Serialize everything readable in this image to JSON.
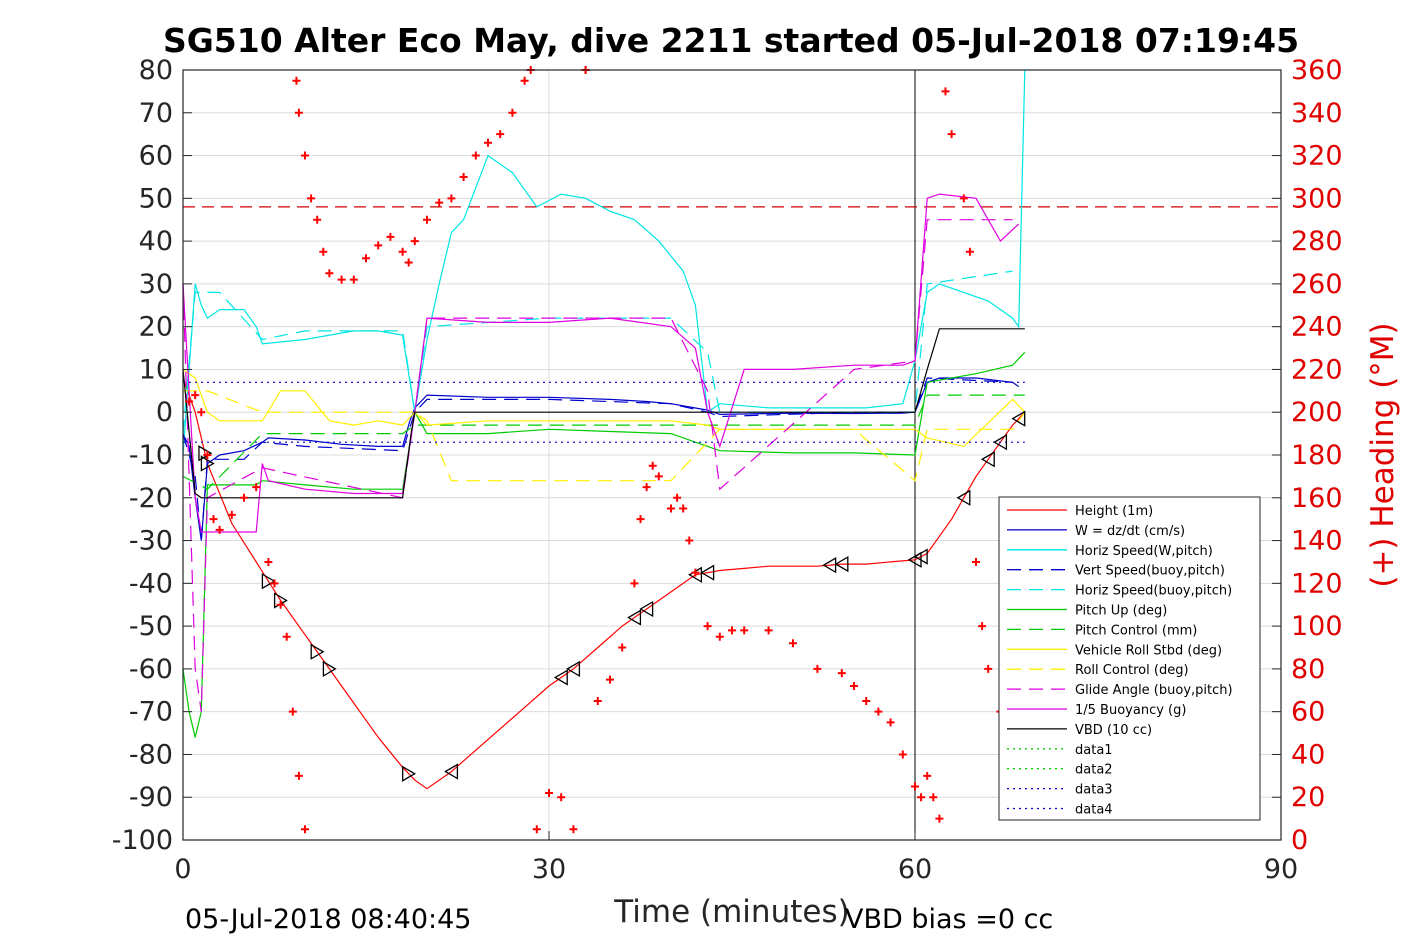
{
  "chart_data": {
    "type": "line",
    "title": "SG510 Alter Eco May, dive 2211 started 05-Jul-2018 07:19:45",
    "xlabel": "Time (minutes)",
    "ylabel_right": "(+) Heading (°M)",
    "footer_left": "05-Jul-2018 08:40:45",
    "footer_right": "VBD bias =0 cc",
    "xlim": [
      0,
      90
    ],
    "ylim": [
      -100,
      80
    ],
    "ylim_right": [
      0,
      360
    ],
    "x_ticks": [
      "0",
      "30",
      "60",
      "90"
    ],
    "y_ticks": [
      "80",
      "70",
      "60",
      "50",
      "40",
      "30",
      "20",
      "10",
      "0",
      "-10",
      "-20",
      "-30",
      "-40",
      "-50",
      "-60",
      "-70",
      "-80",
      "-90",
      "-100"
    ],
    "y_ticks_right": [
      "360",
      "340",
      "320",
      "300",
      "280",
      "260",
      "240",
      "220",
      "200",
      "180",
      "160",
      "140",
      "120",
      "100",
      "80",
      "60",
      "40",
      "20",
      "0"
    ],
    "grid": true,
    "legend_position": "bottom-right",
    "colors": {
      "height": "#ff0000",
      "w": "#0000cc",
      "horiz": "#00e5e5",
      "pitch": "#00cc00",
      "roll": "#ffee00",
      "glide": "#e000e0",
      "vbd": "#000000",
      "heading": "#ff0000"
    },
    "series": [
      {
        "name": "Height (1m)",
        "style": "solid",
        "color": "#ff0000",
        "x": [
          0,
          1,
          2,
          4,
          6,
          8,
          10,
          12,
          14,
          16,
          18,
          19,
          20,
          22,
          24,
          26,
          28,
          30,
          32,
          34,
          36,
          38,
          40,
          42,
          44,
          46,
          48,
          50,
          52,
          54,
          56,
          58,
          60,
          61,
          62,
          63,
          64,
          65,
          66,
          67,
          68,
          69
        ],
        "y": [
          8,
          0,
          -12,
          -26,
          -35,
          -44,
          -52,
          -60,
          -68,
          -76,
          -83,
          -86,
          -88,
          -84,
          -79,
          -74,
          -69,
          -64,
          -60,
          -55,
          -50,
          -46,
          -42,
          -38,
          -37,
          -36.5,
          -36,
          -36,
          -36,
          -35.5,
          -35.5,
          -35,
          -34.5,
          -33,
          -29,
          -25,
          -20,
          -15,
          -11,
          -7,
          -3,
          0
        ]
      },
      {
        "name": "W = dz/dt (cm/s)",
        "style": "solid",
        "color": "#0000cc",
        "x": [
          0,
          0.5,
          1,
          1.5,
          2,
          3,
          5,
          6.5,
          7,
          10,
          13,
          16,
          18,
          18.6,
          19,
          20,
          25,
          30,
          35,
          38,
          40,
          43,
          44,
          50,
          55,
          59,
          60,
          61,
          62,
          65,
          68,
          68.5
        ],
        "y": [
          -5,
          -8,
          -20,
          -30,
          -12,
          -10,
          -9,
          -7,
          -6,
          -6.5,
          -7.5,
          -8,
          -8,
          -2,
          1,
          4,
          3.5,
          3.5,
          3,
          2.5,
          2,
          0.5,
          -0.5,
          -0.2,
          -0.3,
          -0.2,
          0,
          7,
          8,
          8,
          7,
          6
        ]
      },
      {
        "name": "Horiz Speed(W,pitch)",
        "style": "solid",
        "color": "#00e5e5",
        "x": [
          0,
          1,
          1.5,
          2,
          3,
          5,
          6,
          6.5,
          10,
          14,
          16,
          18,
          19,
          20,
          21,
          22,
          23,
          25,
          27,
          29,
          31,
          33,
          35,
          37,
          39,
          41,
          42,
          43,
          44,
          48,
          52,
          56,
          59,
          60,
          61,
          62,
          64,
          66,
          68,
          68.5,
          69
        ],
        "y": [
          -10,
          30,
          25,
          22,
          24,
          24,
          20,
          16,
          17,
          19,
          19,
          18,
          0,
          17,
          30,
          42,
          45,
          60,
          56,
          48,
          51,
          50,
          47,
          45,
          40,
          33,
          25,
          0,
          2,
          1,
          1,
          1,
          2,
          12,
          28,
          30,
          28,
          26,
          22,
          20,
          80
        ]
      },
      {
        "name": "Vert Speed(buoy,pitch)",
        "style": "dashed",
        "color": "#0000cc",
        "x": [
          0,
          1,
          1.5,
          2,
          5,
          6.5,
          10,
          18,
          19,
          20,
          30,
          40,
          43,
          44,
          55,
          60,
          61,
          68
        ],
        "y": [
          -5,
          -15,
          -30,
          -11,
          -11,
          -7,
          -8,
          -9,
          0,
          3,
          3,
          2,
          0,
          -1,
          0,
          0,
          8,
          7
        ]
      },
      {
        "name": "Horiz Speed(buoy,pitch)",
        "style": "dashed",
        "color": "#00e5e5",
        "x": [
          0,
          1,
          2,
          3,
          6.5,
          10,
          18,
          19,
          20,
          30,
          40,
          43,
          44,
          55,
          60,
          61,
          68
        ],
        "y": [
          -5,
          28,
          28,
          28,
          17,
          19,
          19,
          0,
          20,
          22,
          22,
          14,
          0,
          0,
          0,
          30,
          33
        ]
      },
      {
        "name": "Pitch Up (deg)",
        "style": "solid",
        "color": "#00cc00",
        "x": [
          0,
          0.5,
          1,
          1.5,
          2,
          4,
          6,
          6.5,
          10,
          14,
          18,
          19,
          20,
          25,
          30,
          35,
          40,
          43,
          44,
          50,
          55,
          60,
          61,
          65,
          68,
          69
        ],
        "y": [
          -60,
          -70,
          -76,
          -70,
          -17,
          -17,
          -17,
          -16,
          -17,
          -18,
          -18,
          0,
          -5,
          -5,
          -4,
          -4.5,
          -5,
          -8,
          -9,
          -9.5,
          -9.5,
          -10,
          7,
          9,
          11,
          14
        ]
      },
      {
        "name": "Pitch Control (mm)",
        "style": "dashed",
        "color": "#00cc00",
        "x": [
          0,
          2,
          6.5,
          18,
          19,
          43,
          44,
          60,
          61,
          69
        ],
        "y": [
          -15,
          -18,
          -5,
          -5,
          -3,
          -3,
          -3,
          -3,
          4,
          4
        ]
      },
      {
        "name": "Vehicle Roll Stbd (deg)",
        "style": "solid",
        "color": "#ffee00",
        "x": [
          0,
          1,
          2,
          3,
          6,
          6.5,
          8,
          10,
          12,
          14,
          16,
          18,
          19,
          20,
          25,
          30,
          35,
          40,
          43,
          44,
          50,
          55,
          60,
          61,
          64,
          68,
          69
        ],
        "y": [
          10,
          8,
          0,
          -2,
          -2,
          -2,
          5,
          5,
          -2,
          -3,
          -2,
          -3,
          0,
          -3,
          -2,
          -2,
          -2,
          -2,
          -3,
          -4,
          -4,
          -4,
          -4,
          -6,
          -8,
          3,
          0
        ]
      },
      {
        "name": "Roll Control (deg)",
        "style": "dashed",
        "color": "#ffee00",
        "x": [
          0,
          2,
          6.5,
          7,
          18,
          19,
          20,
          22,
          30,
          35,
          40,
          44,
          55,
          60,
          61,
          68,
          69
        ],
        "y": [
          5,
          5,
          0,
          0,
          0,
          0,
          -2,
          -16,
          -16,
          -16,
          -16,
          -4,
          -4,
          -16,
          -4,
          -4,
          0
        ]
      },
      {
        "name": "Glide Angle (buoy,pitch)",
        "style": "dashed",
        "color": "#e000e0",
        "x": [
          0,
          1,
          1.5,
          2,
          6.5,
          18,
          19,
          20,
          30,
          40,
          43,
          44,
          55,
          60,
          61,
          68
        ],
        "y": [
          30,
          -60,
          -70,
          -20,
          -13,
          -20,
          0,
          22,
          22,
          22,
          5,
          -18,
          10,
          12,
          45,
          45
        ]
      },
      {
        "name": "1/5 Buoyancy (g)",
        "style": "solid",
        "color": "#e000e0",
        "x": [
          0,
          1,
          1.5,
          2,
          3,
          6,
          6.5,
          7,
          10,
          14,
          18,
          19,
          20,
          25,
          30,
          35,
          40,
          42,
          43,
          44,
          46,
          50,
          55,
          59,
          60,
          61,
          62,
          65,
          66,
          67,
          68.5
        ],
        "y": [
          30,
          -20,
          -28,
          -28,
          -28,
          -28,
          -12,
          -16,
          -18,
          -19,
          -19,
          0,
          22,
          21,
          21,
          22,
          20,
          15,
          0,
          -8,
          10,
          10,
          11,
          11,
          12,
          50,
          51,
          50,
          45,
          40,
          44
        ]
      },
      {
        "name": "VBD (10 cc)",
        "style": "solid",
        "color": "#000000",
        "x": [
          0,
          1,
          1.5,
          2,
          18,
          18.7,
          19,
          20,
          60,
          61,
          62,
          69
        ],
        "y": [
          10,
          -19,
          -20,
          -20,
          -20,
          -5,
          0,
          0,
          0,
          10,
          19.5,
          19.5
        ]
      },
      {
        "name": "data1",
        "style": "dotted",
        "color": "#00cc00",
        "x": [],
        "y": []
      },
      {
        "name": "data2",
        "style": "dotted",
        "color": "#00cc00",
        "x": [],
        "y": []
      },
      {
        "name": "data3",
        "style": "dotted",
        "color": "#0000cc",
        "x": [
          0,
          69
        ],
        "y": [
          7,
          7
        ]
      },
      {
        "name": "data4",
        "style": "dotted",
        "color": "#0000cc",
        "x": [
          0,
          69
        ],
        "y": [
          -7,
          -7
        ]
      }
    ],
    "heading_series": {
      "axis": "right",
      "marker": "+",
      "color": "#ff0000",
      "x": [
        0.5,
        1,
        1.5,
        2,
        2.5,
        3,
        4,
        5,
        6,
        7,
        7.5,
        8,
        8.5,
        9,
        9.5,
        10,
        9.3,
        9.5,
        10,
        10.5,
        11,
        11.5,
        12,
        13,
        14,
        15,
        16,
        17,
        18,
        18.5,
        19,
        20,
        21,
        22,
        23,
        24,
        25,
        26,
        27,
        28,
        28.5,
        29,
        30,
        31,
        32,
        33,
        33,
        34,
        35,
        36,
        37,
        37.5,
        38,
        38.5,
        39,
        40,
        40.5,
        41,
        41.5,
        42,
        43,
        44,
        45,
        46,
        48,
        50,
        52,
        54,
        55,
        56,
        57,
        58,
        59,
        60,
        60.5,
        61,
        61.5,
        62,
        62.5,
        63,
        64,
        64.5,
        65,
        65.5,
        66,
        67,
        68
      ],
      "y": [
        205,
        208,
        200,
        180,
        150,
        145,
        152,
        160,
        165,
        130,
        120,
        110,
        95,
        60,
        30,
        5,
        355,
        340,
        320,
        300,
        290,
        275,
        265,
        262,
        262,
        272,
        278,
        282,
        275,
        270,
        280,
        290,
        298,
        300,
        310,
        320,
        326,
        330,
        340,
        355,
        360,
        5,
        22,
        20,
        5,
        360,
        360,
        65,
        75,
        90,
        120,
        150,
        165,
        175,
        170,
        155,
        160,
        155,
        140,
        125,
        100,
        95,
        98,
        98,
        98,
        92,
        80,
        78,
        72,
        65,
        60,
        55,
        40,
        25,
        20,
        30,
        20,
        10,
        350,
        330,
        300,
        275,
        130,
        100,
        80,
        60,
        30
      ]
    }
  }
}
